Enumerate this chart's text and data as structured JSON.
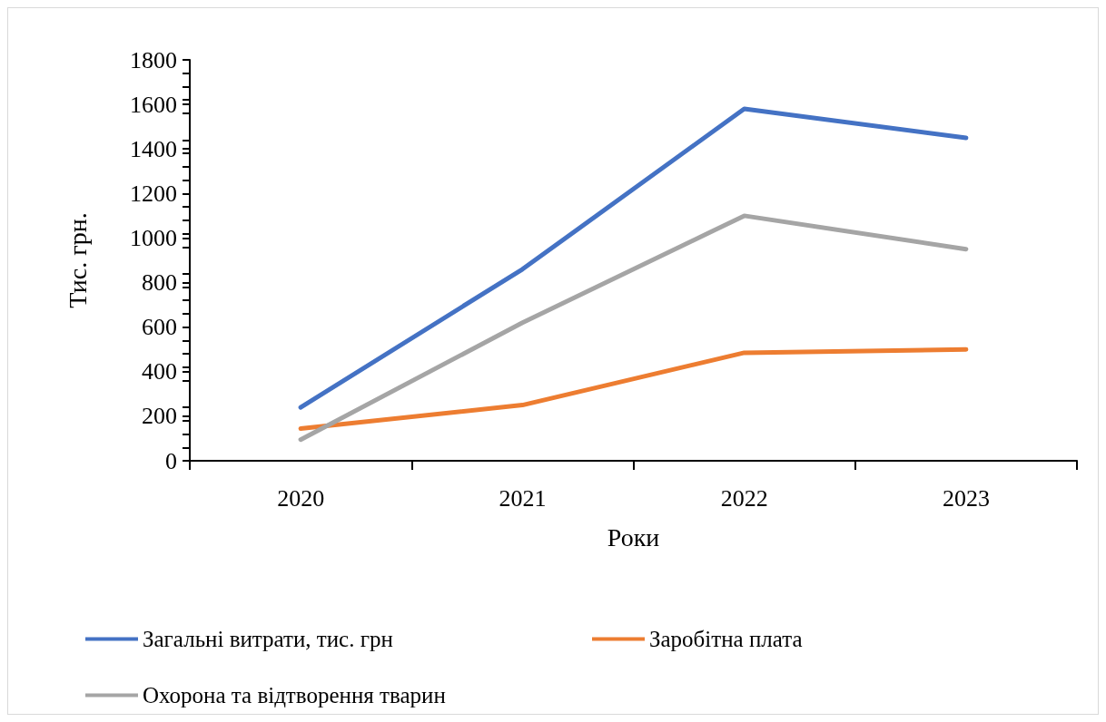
{
  "chart_data": {
    "type": "line",
    "xlabel": "Роки",
    "ylabel": "Тис. грн.",
    "categories": [
      "2020",
      "2021",
      "2022",
      "2023"
    ],
    "series": [
      {
        "name": "Загальні витрати, тис. грн",
        "color": "#4472c4",
        "values": [
          240,
          860,
          1580,
          1450
        ]
      },
      {
        "name": "Заробітна плата",
        "color": "#ed7d31",
        "values": [
          145,
          250,
          485,
          500
        ]
      },
      {
        "name": "Охорона та відтворення тварин",
        "color": "#a5a5a5",
        "values": [
          95,
          620,
          1100,
          950
        ]
      }
    ],
    "ylim": [
      0,
      1800
    ],
    "yticks": [
      0,
      200,
      400,
      600,
      800,
      1000,
      1200,
      1400,
      1600,
      1800
    ],
    "grid": false,
    "legend": "bottom",
    "marker": "none",
    "line_style": "solid"
  }
}
